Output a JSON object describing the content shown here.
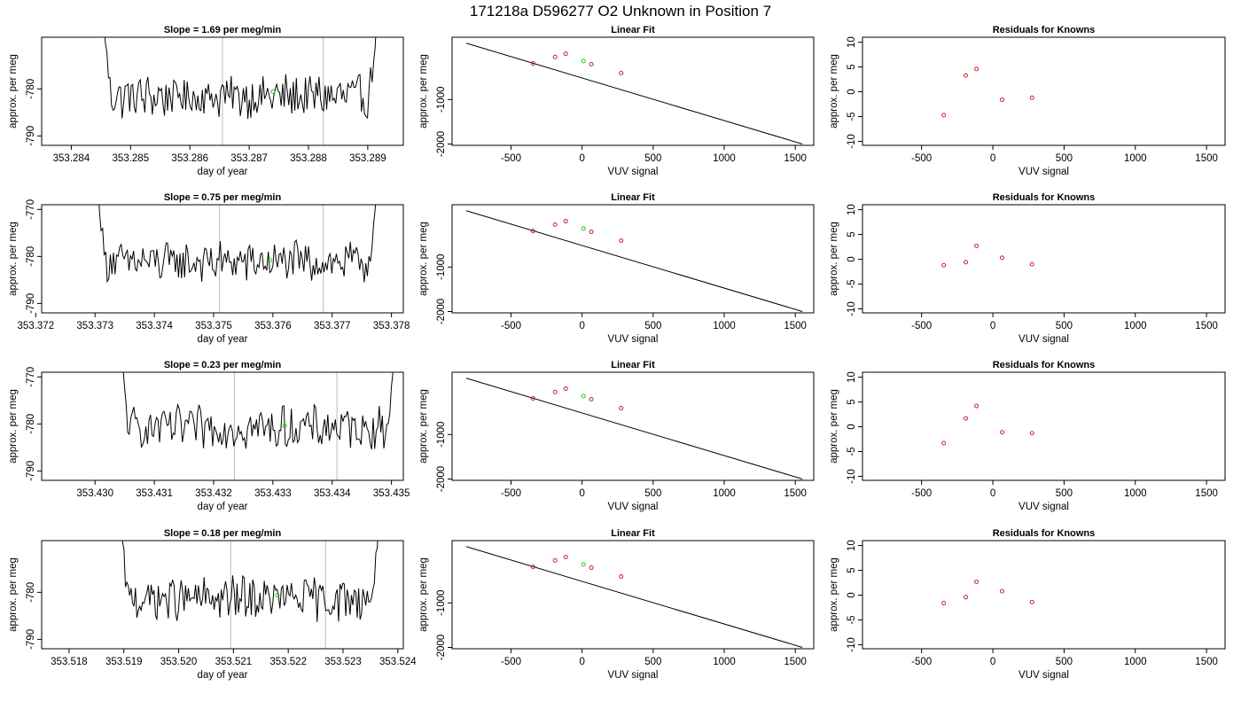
{
  "figure_title": "171218a      D596277   O2 Unknown in Position  7",
  "colors": {
    "trace": "#000000",
    "marker_red": "#cc2222",
    "marker_green": "#22cc22",
    "vline": "#bbbbbb",
    "fitline": "#000000"
  },
  "chart_data": [
    {
      "type": "line",
      "row": 0,
      "panel": "timeseries",
      "title": "Slope =  1.69  per meg/min",
      "xlabel": "day of year",
      "ylabel": "approx. per meg",
      "xlim": [
        353.2835,
        353.2896
      ],
      "ylim": [
        -792,
        -769
      ],
      "xticks": [
        "353.284",
        "353.285",
        "353.286",
        "353.287",
        "353.288",
        "353.289"
      ],
      "yticks": [
        "-780",
        "-790"
      ],
      "ytick_values": [
        -780,
        -790
      ],
      "x_start": 353.28455,
      "x_end": 353.28915,
      "y_mean": -781.6,
      "y_amp": 2.6,
      "edge_high": -765,
      "vlines": [
        353.28655,
        353.28825
      ],
      "green_point": {
        "x": 353.2874,
        "y": -780.6
      }
    },
    {
      "type": "line",
      "row": 0,
      "panel": "fit",
      "title": "Linear Fit",
      "xlabel": "VUV signal",
      "ylabel": "approx. per meg",
      "xlim": [
        -915,
        1630
      ],
      "ylim": [
        -2030,
        400
      ],
      "xticks": [
        "-500",
        "0",
        "500",
        "1000",
        "1500"
      ],
      "yticks": [
        "-1000",
        "-2000"
      ],
      "ytick_values": [
        -1000,
        -2000
      ],
      "line": {
        "x": [
          -815,
          1550
        ],
        "y": [
          265,
          -2000
        ]
      },
      "points": {
        "x": [
          -345,
          -190,
          -115,
          65,
          275
        ],
        "y": [
          -190,
          -45,
          30,
          -207,
          -407
        ]
      },
      "green_point": {
        "x": 10,
        "y": -136
      }
    },
    {
      "type": "scatter",
      "row": 0,
      "panel": "residuals",
      "title": "Residuals for Knowns",
      "xlabel": "VUV signal",
      "ylabel": "approx. per meg",
      "xlim": [
        -915,
        1630
      ],
      "ylim": [
        -10.8,
        11
      ],
      "xticks": [
        "-500",
        "0",
        "500",
        "1000",
        "1500"
      ],
      "yticks": [
        "-10",
        "-5",
        "0",
        "5",
        "10"
      ],
      "points": {
        "x": [
          -345,
          -190,
          -115,
          65,
          275
        ],
        "y": [
          -4.7,
          3.3,
          4.6,
          -1.6,
          -1.2
        ]
      }
    },
    {
      "type": "line",
      "row": 1,
      "panel": "timeseries",
      "title": "Slope =  0.75  per meg/min",
      "xlabel": "day of year",
      "ylabel": "approx. per meg",
      "xlim": [
        353.3721,
        353.3782
      ],
      "ylim": [
        -792,
        -769
      ],
      "xticks": [
        "353.372",
        "353.373",
        "353.374",
        "353.375",
        "353.376",
        "353.377",
        "353.378"
      ],
      "yticks": [
        "-770",
        "-780",
        "-790"
      ],
      "ytick_values": [
        -770,
        -780,
        -790
      ],
      "x_start": 353.37305,
      "x_end": 353.37775,
      "y_mean": -781.2,
      "y_amp": 2.4,
      "edge_high": -765,
      "vlines": [
        353.3751,
        353.37685
      ],
      "green_point": {
        "x": 353.37595,
        "y": -780.8
      }
    },
    {
      "type": "line",
      "row": 1,
      "panel": "fit",
      "title": "Linear Fit",
      "xlabel": "VUV signal",
      "ylabel": "approx. per meg",
      "xlim": [
        -915,
        1630
      ],
      "ylim": [
        -2030,
        400
      ],
      "xticks": [
        "-500",
        "0",
        "500",
        "1000",
        "1500"
      ],
      "yticks": [
        "-1000",
        "-2000"
      ],
      "ytick_values": [
        -1000,
        -2000
      ],
      "line": {
        "x": [
          -815,
          1550
        ],
        "y": [
          265,
          -2000
        ]
      },
      "points": {
        "x": [
          -345,
          -190,
          -115,
          65,
          275
        ],
        "y": [
          -190,
          -45,
          30,
          -207,
          -407
        ]
      },
      "green_point": {
        "x": 10,
        "y": -136
      }
    },
    {
      "type": "scatter",
      "row": 1,
      "panel": "residuals",
      "title": "Residuals for Knowns",
      "xlabel": "VUV signal",
      "ylabel": "approx. per meg",
      "xlim": [
        -915,
        1630
      ],
      "ylim": [
        -10.8,
        11
      ],
      "xticks": [
        "-500",
        "0",
        "500",
        "1000",
        "1500"
      ],
      "yticks": [
        "-10",
        "-5",
        "0",
        "5",
        "10"
      ],
      "points": {
        "x": [
          -345,
          -190,
          -115,
          65,
          275
        ],
        "y": [
          -1.2,
          -0.6,
          2.7,
          0.3,
          -1.0
        ]
      }
    },
    {
      "type": "line",
      "row": 2,
      "panel": "timeseries",
      "title": "Slope =  0.23  per meg/min",
      "xlabel": "day of year",
      "ylabel": "approx. per meg",
      "xlim": [
        353.4291,
        353.4352
      ],
      "ylim": [
        -792,
        -769
      ],
      "xticks": [
        "353.430",
        "353.431",
        "353.432",
        "353.433",
        "353.434",
        "353.435"
      ],
      "yticks": [
        "-770",
        "-780",
        "-790"
      ],
      "ytick_values": [
        -770,
        -780,
        -790
      ],
      "x_start": 353.43045,
      "x_end": 353.43505,
      "y_mean": -780.8,
      "y_amp": 2.5,
      "edge_high": -765,
      "vlines": [
        353.43235,
        353.43408
      ],
      "green_point": {
        "x": 353.4332,
        "y": -780.4
      }
    },
    {
      "type": "line",
      "row": 2,
      "panel": "fit",
      "title": "Linear Fit",
      "xlabel": "VUV signal",
      "ylabel": "approx. per meg",
      "xlim": [
        -915,
        1630
      ],
      "ylim": [
        -2030,
        400
      ],
      "xticks": [
        "-500",
        "0",
        "500",
        "1000",
        "1500"
      ],
      "yticks": [
        "-1000",
        "-2000"
      ],
      "ytick_values": [
        -1000,
        -2000
      ],
      "line": {
        "x": [
          -815,
          1550
        ],
        "y": [
          265,
          -2000
        ]
      },
      "points": {
        "x": [
          -345,
          -190,
          -115,
          65,
          275
        ],
        "y": [
          -190,
          -45,
          30,
          -207,
          -407
        ]
      },
      "green_point": {
        "x": 10,
        "y": -136
      }
    },
    {
      "type": "scatter",
      "row": 2,
      "panel": "residuals",
      "title": "Residuals for Knowns",
      "xlabel": "VUV signal",
      "ylabel": "approx. per meg",
      "xlim": [
        -915,
        1630
      ],
      "ylim": [
        -10.8,
        11
      ],
      "xticks": [
        "-500",
        "0",
        "500",
        "1000",
        "1500"
      ],
      "yticks": [
        "-10",
        "-5",
        "0",
        "5",
        "10"
      ],
      "points": {
        "x": [
          -345,
          -190,
          -115,
          65,
          275
        ],
        "y": [
          -3.3,
          1.7,
          4.2,
          -1.1,
          -1.3
        ]
      }
    },
    {
      "type": "line",
      "row": 3,
      "panel": "timeseries",
      "title": "Slope =  0.18  per meg/min",
      "xlabel": "day of year",
      "ylabel": "approx. per meg",
      "xlim": [
        353.5175,
        353.5241
      ],
      "ylim": [
        -792,
        -769
      ],
      "xticks": [
        "353.518",
        "353.519",
        "353.520",
        "353.521",
        "353.522",
        "353.523",
        "353.524"
      ],
      "yticks": [
        "-780",
        "-790"
      ],
      "ytick_values": [
        -780,
        -790
      ],
      "x_start": 353.51895,
      "x_end": 353.52365,
      "y_mean": -781.4,
      "y_amp": 2.6,
      "edge_high": -765,
      "vlines": [
        353.52095,
        353.52268
      ],
      "green_point": {
        "x": 353.5218,
        "y": -780.6
      }
    },
    {
      "type": "line",
      "row": 3,
      "panel": "fit",
      "title": "Linear Fit",
      "xlabel": "VUV signal",
      "ylabel": "approx. per meg",
      "xlim": [
        -915,
        1630
      ],
      "ylim": [
        -2030,
        400
      ],
      "xticks": [
        "-500",
        "0",
        "500",
        "1000",
        "1500"
      ],
      "yticks": [
        "-1000",
        "-2000"
      ],
      "ytick_values": [
        -1000,
        -2000
      ],
      "line": {
        "x": [
          -815,
          1550
        ],
        "y": [
          265,
          -2000
        ]
      },
      "points": {
        "x": [
          -345,
          -190,
          -115,
          65,
          275
        ],
        "y": [
          -190,
          -45,
          30,
          -207,
          -407
        ]
      },
      "green_point": {
        "x": 10,
        "y": -136
      }
    },
    {
      "type": "scatter",
      "row": 3,
      "panel": "residuals",
      "title": "Residuals for Knowns",
      "xlabel": "VUV signal",
      "ylabel": "approx. per meg",
      "xlim": [
        -915,
        1630
      ],
      "ylim": [
        -10.8,
        11
      ],
      "xticks": [
        "-500",
        "0",
        "500",
        "1000",
        "1500"
      ],
      "yticks": [
        "-10",
        "-5",
        "0",
        "5",
        "10"
      ],
      "points": {
        "x": [
          -345,
          -190,
          -115,
          65,
          275
        ],
        "y": [
          -1.6,
          -0.4,
          2.7,
          0.8,
          -1.4
        ]
      }
    }
  ]
}
